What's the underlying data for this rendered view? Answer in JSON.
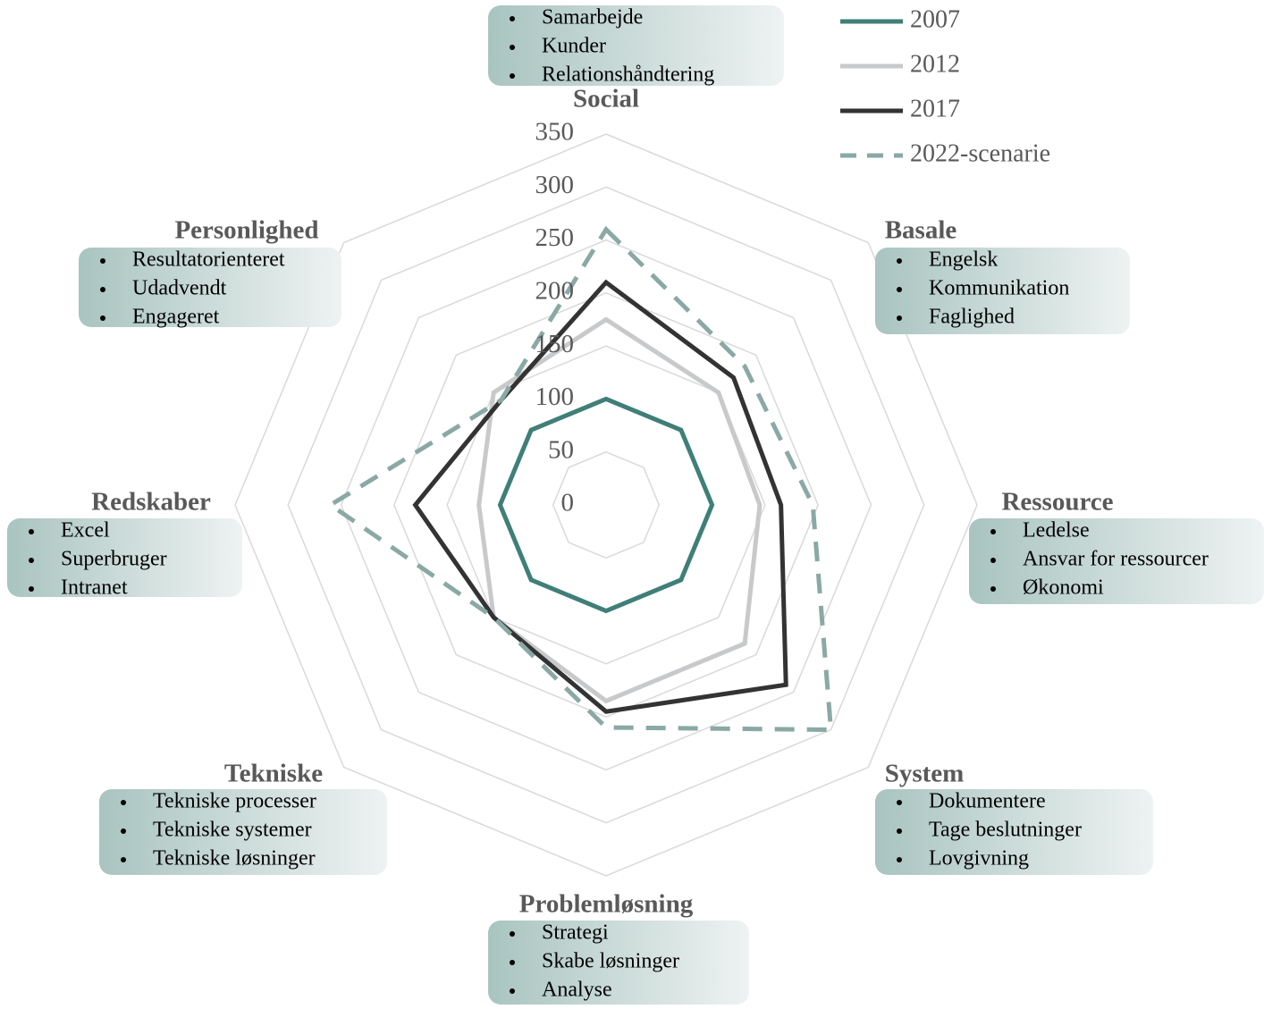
{
  "chart_data": {
    "type": "radar",
    "categories": [
      "Social",
      "Basale",
      "Ressource",
      "System",
      "Problemløsning",
      "Tekniske",
      "Redskaber",
      "Personlighed"
    ],
    "category_items": [
      [
        "Samarbejde",
        "Kunder",
        "Relationshåndtering"
      ],
      [
        "Engelsk",
        "Kommunikation",
        "Faglighed"
      ],
      [
        "Ledelse",
        "Ansvar for ressourcer",
        "Økonomi"
      ],
      [
        "Dokumentere",
        "Tage beslutninger",
        "Lovgivning"
      ],
      [
        "Strategi",
        "Skabe løsninger",
        "Analyse"
      ],
      [
        "Tekniske processer",
        "Tekniske systemer",
        "Tekniske løsninger"
      ],
      [
        "Excel",
        "Superbruger",
        "Intranet"
      ],
      [
        "Resultatorienteret",
        "Udadvendt",
        "Engageret"
      ]
    ],
    "series": [
      {
        "name": "2007",
        "color": "#3f7f78",
        "values": [
          100,
          100,
          100,
          100,
          100,
          100,
          100,
          100
        ]
      },
      {
        "name": "2012",
        "color": "#c8c9cb",
        "values": [
          175,
          150,
          145,
          185,
          185,
          150,
          120,
          150
        ]
      },
      {
        "name": "2017",
        "color": "#333333",
        "values": [
          210,
          170,
          165,
          240,
          195,
          150,
          180,
          140
        ]
      },
      {
        "name": "2022-scenarie",
        "color": "#8aa9a4",
        "dashed": true,
        "values": [
          260,
          185,
          195,
          300,
          210,
          150,
          260,
          140
        ]
      }
    ],
    "ylim": [
      0,
      350
    ],
    "yticks": [
      0,
      50,
      100,
      150,
      200,
      250,
      300,
      350
    ],
    "grid": true,
    "legend": "top-right"
  }
}
